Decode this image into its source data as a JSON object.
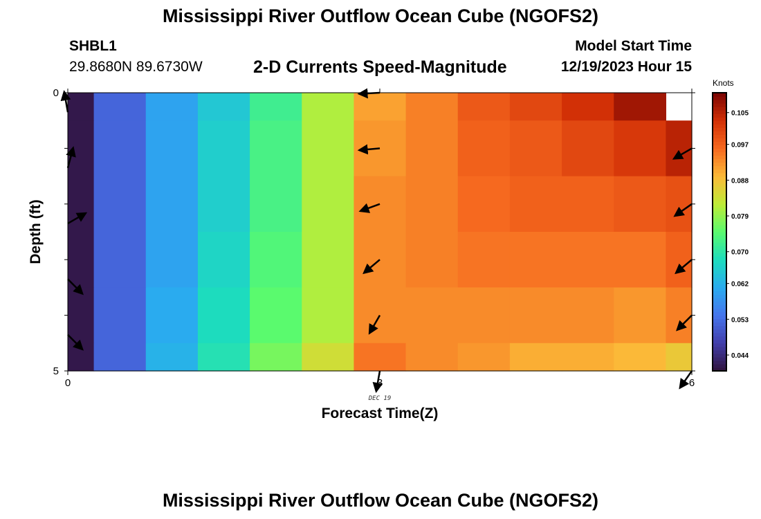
{
  "header": {
    "title": "Mississippi River Outflow Ocean Cube (NGOFS2)",
    "footer_title": "Mississippi River Outflow Ocean Cube (NGOFS2)",
    "station_id": "SHBL1",
    "station_location": "29.8680N  89.6730W",
    "subtitle": "2-D Currents Speed-Magnitude",
    "model_start_label": "Model Start Time",
    "model_start_value": "12/19/2023 Hour 15"
  },
  "chart_data": {
    "type": "heatmap",
    "title": "2-D Currents Speed-Magnitude",
    "xlabel": "Forecast Time(Z)",
    "ylabel": "Depth (ft)",
    "x_ticks": [
      "0",
      "3",
      "6"
    ],
    "x_tick_values": [
      0,
      3,
      6
    ],
    "x_date_label": "DEC 19",
    "y_ticks": [
      "0",
      "5"
    ],
    "y_tick_values": [
      0,
      5
    ],
    "xlim": [
      0,
      6
    ],
    "ylim": [
      5,
      0
    ],
    "x_values": [
      0,
      0.5,
      1,
      1.5,
      2,
      2.5,
      3,
      3.5,
      4,
      4.5,
      5,
      5.5,
      6
    ],
    "depth_values": [
      0,
      1,
      2,
      3,
      4,
      5
    ],
    "colorbar": {
      "unit": "Knots",
      "min": 0.04,
      "max": 0.11,
      "ticks": [
        "0.105",
        "0.097",
        "0.088",
        "0.079",
        "0.070",
        "0.062",
        "0.053",
        "0.044"
      ],
      "tick_values": [
        0.105,
        0.097,
        0.088,
        0.079,
        0.07,
        0.062,
        0.053,
        0.044
      ]
    },
    "values": [
      [
        0.041,
        0.052,
        0.06,
        0.065,
        0.072,
        0.081,
        0.091,
        0.094,
        0.098,
        0.1,
        0.103,
        0.107,
        null
      ],
      [
        0.041,
        0.052,
        0.06,
        0.066,
        0.073,
        0.081,
        0.092,
        0.094,
        0.097,
        0.098,
        0.1,
        0.102,
        0.105
      ],
      [
        0.041,
        0.052,
        0.06,
        0.066,
        0.073,
        0.081,
        0.093,
        0.094,
        0.096,
        0.097,
        0.097,
        0.098,
        0.099
      ],
      [
        0.041,
        0.052,
        0.06,
        0.067,
        0.074,
        0.081,
        0.093,
        0.094,
        0.095,
        0.095,
        0.095,
        0.095,
        0.097
      ],
      [
        0.041,
        0.052,
        0.061,
        0.068,
        0.075,
        0.081,
        0.093,
        0.093,
        0.093,
        0.093,
        0.093,
        0.092,
        0.094
      ],
      [
        0.041,
        0.052,
        0.062,
        0.069,
        0.077,
        0.084,
        0.095,
        0.093,
        0.092,
        0.09,
        0.09,
        0.089,
        0.087
      ]
    ],
    "vectors": [
      {
        "x": 0,
        "depth": 0.35,
        "angle": 100
      },
      {
        "x": 0,
        "depth": 1.35,
        "angle": 75
      },
      {
        "x": 0,
        "depth": 2.35,
        "angle": 30
      },
      {
        "x": 0,
        "depth": 3.35,
        "angle": -45
      },
      {
        "x": 0,
        "depth": 4.35,
        "angle": -45
      },
      {
        "x": 3,
        "depth": 0.0,
        "angle": 183
      },
      {
        "x": 3,
        "depth": 1.0,
        "angle": 185
      },
      {
        "x": 3,
        "depth": 2.0,
        "angle": 200
      },
      {
        "x": 3,
        "depth": 3.0,
        "angle": 220
      },
      {
        "x": 3,
        "depth": 4.0,
        "angle": 240
      },
      {
        "x": 3,
        "depth": 5.0,
        "angle": 260
      },
      {
        "x": 6,
        "depth": 1.0,
        "angle": 210
      },
      {
        "x": 6,
        "depth": 2.0,
        "angle": 215
      },
      {
        "x": 6,
        "depth": 3.0,
        "angle": 220
      },
      {
        "x": 6,
        "depth": 4.0,
        "angle": 225
      },
      {
        "x": 6,
        "depth": 5.0,
        "angle": 235
      }
    ]
  }
}
